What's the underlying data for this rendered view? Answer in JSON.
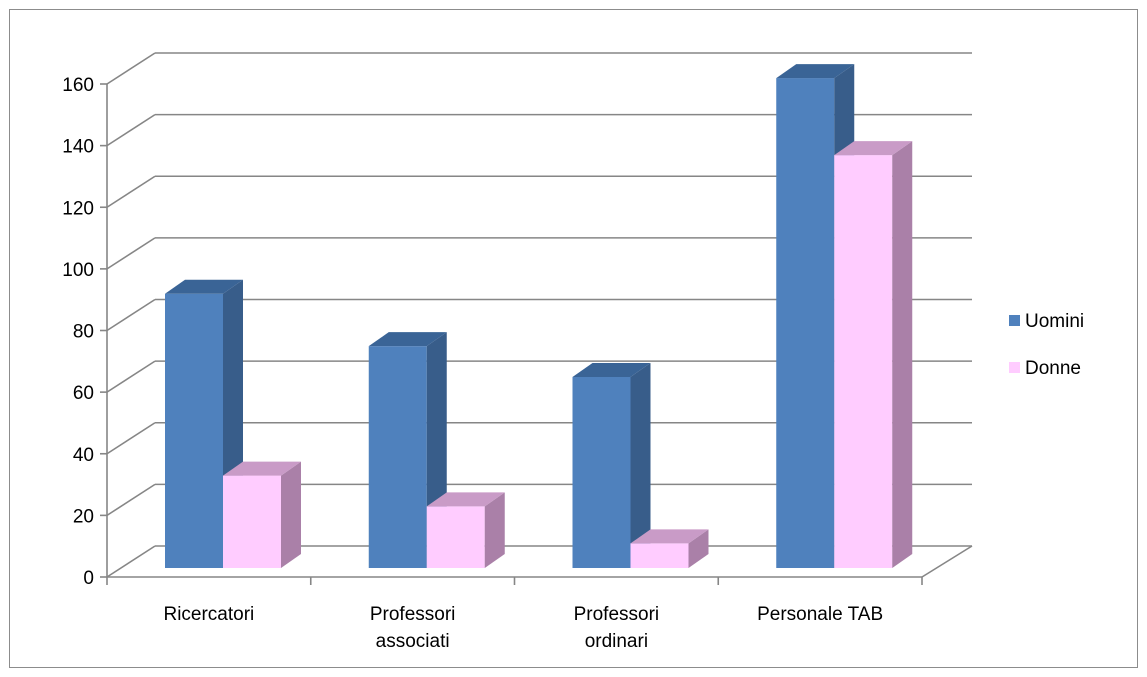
{
  "chart_data": {
    "type": "bar",
    "title": "",
    "xlabel": "",
    "ylabel": "",
    "categories": [
      [
        "Ricercatori"
      ],
      [
        "Professori",
        "associati"
      ],
      [
        "Professori",
        "ordinari"
      ],
      [
        "Personale TAB"
      ]
    ],
    "series": [
      {
        "name": "Uomini",
        "values": [
          89,
          72,
          62,
          159
        ],
        "color": "#4f81bd",
        "side_color": "#385d8a",
        "top_color": "#3a6496"
      },
      {
        "name": "Donne",
        "values": [
          30,
          20,
          8,
          134
        ],
        "color": "#ffccff",
        "side_color": "#aa80a8",
        "top_color": "#c99bc7"
      }
    ],
    "ylim": [
      0,
      160
    ],
    "yticks": [
      0,
      20,
      40,
      60,
      80,
      100,
      120,
      140,
      160
    ],
    "grid": true,
    "legend_position": "right",
    "style": "3d-clustered-column"
  }
}
